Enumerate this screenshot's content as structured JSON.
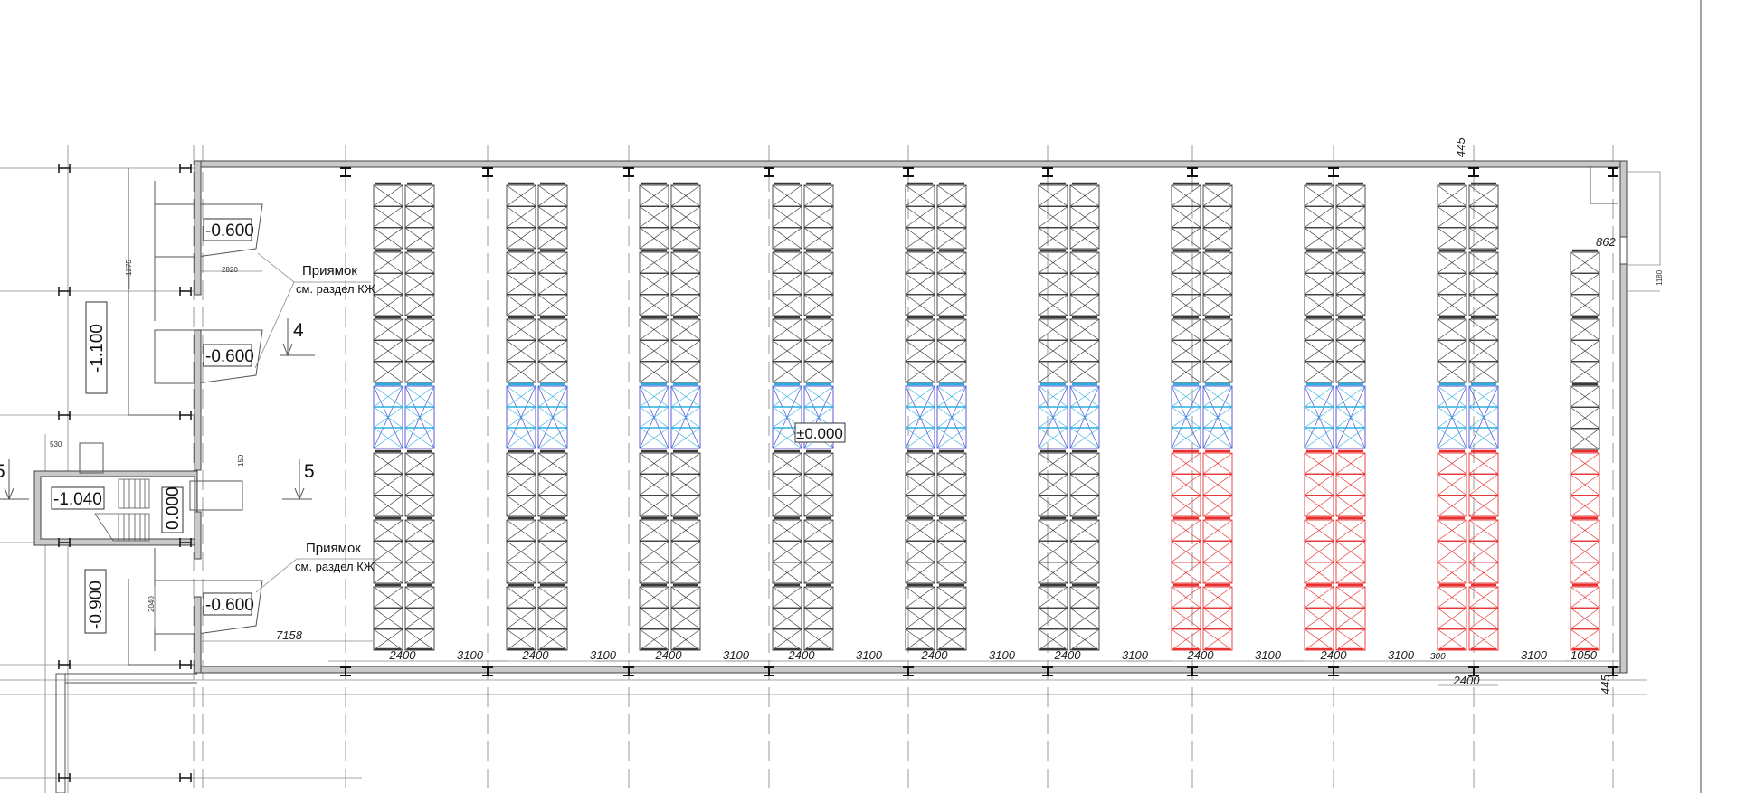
{
  "drawing": {
    "levels": {
      "pit1": "-0.600",
      "pit2": "-0.600",
      "pit3": "-0.600",
      "annex_top": "-1.100",
      "annex_bottom": "-0.900",
      "stair": "-1.040",
      "entry": "0.000",
      "floor": "±0.000"
    },
    "notes": [
      {
        "title": "Приямок",
        "ref": "см. раздел КЖ"
      },
      {
        "title": "Приямок",
        "ref": "см. раздел КЖ"
      }
    ],
    "section_marks": [
      "4",
      "5",
      "5"
    ],
    "small_dims": {
      "pit_width": "2820",
      "pit_offset": "1275",
      "stair_opening": "530",
      "entry_offset": "150",
      "pit3_height": "2040",
      "clearance": "7158",
      "top_offset": "445",
      "bottom_offset": "445",
      "right_offset": "862",
      "door_width": "1180"
    },
    "rack_dims": {
      "rack_width": "2400",
      "aisle_width": "3100",
      "edge_small": "300",
      "last_rack": "1050"
    },
    "rack_colors": {
      "black": "#3a3a3a",
      "blue": "#5b5bd6",
      "cyan": "#2ab0e0",
      "red": "#e83030"
    },
    "rack_rows": [
      {
        "groups": [
          "black",
          "black",
          "black",
          "blue",
          "black",
          "black",
          "black"
        ]
      },
      {
        "groups": [
          "black",
          "black",
          "black",
          "blue",
          "black",
          "black",
          "black"
        ]
      },
      {
        "groups": [
          "black",
          "black",
          "black",
          "blue",
          "black",
          "black",
          "black"
        ]
      },
      {
        "groups": [
          "black",
          "black",
          "black",
          "blue",
          "black",
          "black",
          "black"
        ]
      },
      {
        "groups": [
          "black",
          "black",
          "black",
          "blue",
          "black",
          "black",
          "black"
        ]
      },
      {
        "groups": [
          "black",
          "black",
          "black",
          "blue",
          "black",
          "black",
          "black"
        ]
      },
      {
        "groups": [
          "black",
          "black",
          "black",
          "blue",
          "red",
          "red",
          "red"
        ]
      },
      {
        "groups": [
          "black",
          "black",
          "black",
          "blue",
          "red",
          "red",
          "red"
        ]
      },
      {
        "groups": [
          "black",
          "black",
          "black",
          "blue",
          "red",
          "red",
          "red"
        ]
      },
      {
        "groups": [
          "none",
          "black",
          "black",
          "black",
          "red",
          "red",
          "red"
        ],
        "single": true
      }
    ]
  }
}
